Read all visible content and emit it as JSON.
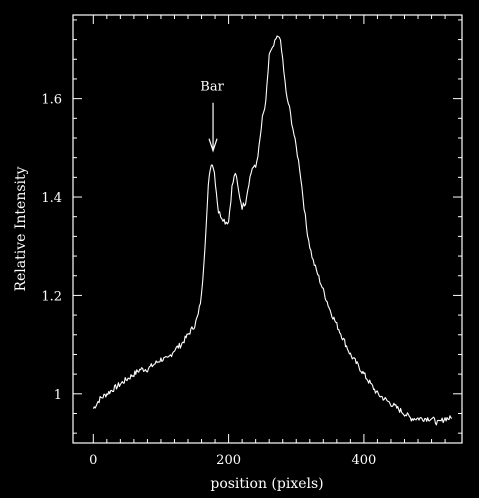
{
  "chart_data": {
    "type": "line",
    "xlabel": "position (pixels)",
    "ylabel": "Relative Intensity",
    "xlim": [
      -30,
      545
    ],
    "ylim": [
      0.9,
      1.77
    ],
    "x_ticks": [
      0,
      200,
      400
    ],
    "x_tick_labels": [
      "0",
      "200",
      "400"
    ],
    "y_ticks": [
      1.0,
      1.2,
      1.4,
      1.6
    ],
    "y_tick_labels": [
      "1",
      "1.2",
      "1.4",
      "1.6"
    ],
    "grid": false,
    "colors": {
      "background": "#000000",
      "foreground": "#ffffff"
    },
    "annotations": [
      {
        "text": "Bar",
        "x": 177,
        "y": 1.49,
        "marker": "down-arrow"
      }
    ],
    "series": [
      {
        "x": [
          0,
          10,
          20,
          30,
          40,
          50,
          60,
          70,
          80,
          90,
          100,
          110,
          120,
          130,
          140,
          150,
          155,
          160,
          165,
          170,
          173,
          176,
          179,
          182,
          185,
          190,
          195,
          200,
          205,
          210,
          215,
          220,
          225,
          230,
          235,
          240,
          245,
          250,
          255,
          260,
          265,
          270,
          275,
          280,
          285,
          290,
          295,
          300,
          305,
          310,
          315,
          320,
          325,
          330,
          335,
          340,
          350,
          360,
          370,
          380,
          390,
          400,
          410,
          420,
          430,
          440,
          450,
          460,
          470,
          480,
          490,
          500,
          510,
          520,
          530
        ],
        "y": [
          0.97,
          0.99,
          1.0,
          1.01,
          1.02,
          1.03,
          1.04,
          1.05,
          1.05,
          1.06,
          1.07,
          1.07,
          1.09,
          1.1,
          1.12,
          1.14,
          1.16,
          1.2,
          1.3,
          1.42,
          1.46,
          1.47,
          1.45,
          1.41,
          1.37,
          1.36,
          1.35,
          1.35,
          1.42,
          1.45,
          1.41,
          1.38,
          1.39,
          1.43,
          1.46,
          1.46,
          1.5,
          1.56,
          1.59,
          1.69,
          1.7,
          1.72,
          1.73,
          1.68,
          1.61,
          1.58,
          1.54,
          1.5,
          1.46,
          1.4,
          1.34,
          1.3,
          1.27,
          1.25,
          1.23,
          1.21,
          1.17,
          1.14,
          1.11,
          1.08,
          1.06,
          1.04,
          1.02,
          1.0,
          0.99,
          0.98,
          0.97,
          0.96,
          0.95,
          0.95,
          0.95,
          0.95,
          0.94,
          0.95,
          0.95
        ]
      }
    ]
  }
}
